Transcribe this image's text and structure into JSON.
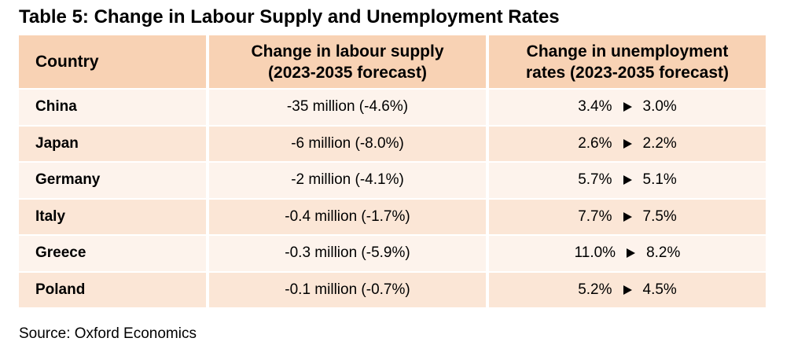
{
  "title": "Table 5: Change in Labour Supply and Unemployment Rates",
  "headers": {
    "country": "Country",
    "labour_line1": "Change in labour supply",
    "labour_line2": "(2023-2035 forecast)",
    "unemp_line1": "Change in unemployment",
    "unemp_line2": "rates (2023-2035 forecast)"
  },
  "rows": [
    {
      "country": "China",
      "labour": "-35 million (-4.6%)",
      "rate_from": "3.4%",
      "rate_to": "3.0%"
    },
    {
      "country": "Japan",
      "labour": "-6 million (-8.0%)",
      "rate_from": "2.6%",
      "rate_to": "2.2%"
    },
    {
      "country": "Germany",
      "labour": "-2 million (-4.1%)",
      "rate_from": "5.7%",
      "rate_to": "5.1%"
    },
    {
      "country": "Italy",
      "labour": "-0.4 million (-1.7%)",
      "rate_from": "7.7%",
      "rate_to": "7.5%"
    },
    {
      "country": "Greece",
      "labour": "-0.3 million (-5.9%)",
      "rate_from": "11.0%",
      "rate_to": "8.2%"
    },
    {
      "country": "Poland",
      "labour": "-0.1 million (-0.7%)",
      "rate_from": "5.2%",
      "rate_to": "4.5%"
    }
  ],
  "source": "Source: Oxford Economics",
  "colors": {
    "header_bg": "#f8d2b4",
    "row_light": "#fdf3ec",
    "row_dark": "#fbe6d6"
  }
}
